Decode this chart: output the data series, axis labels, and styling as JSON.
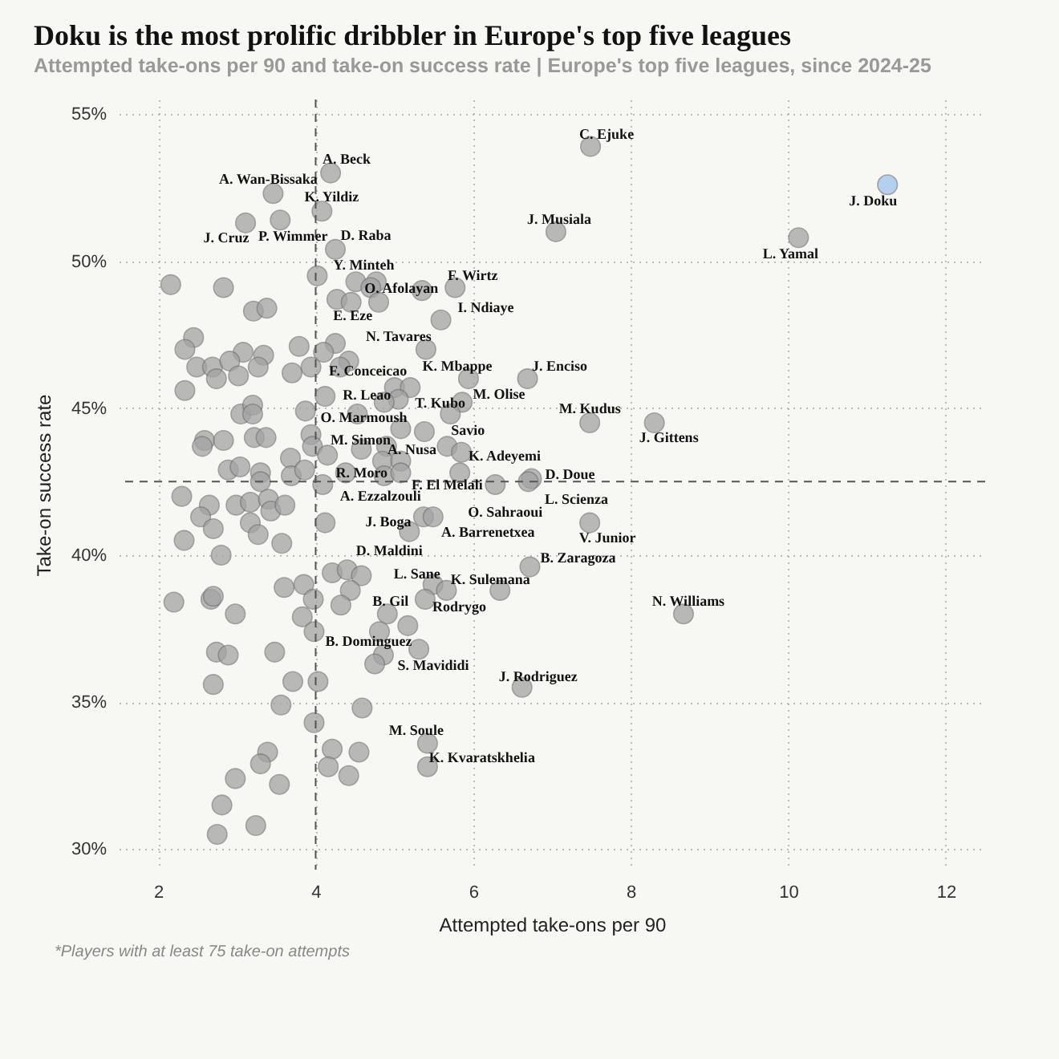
{
  "chart_data": {
    "type": "scatter",
    "title": "Doku is the most prolific dribbler in Europe's top five leagues",
    "subtitle": "Attempted take-ons per 90 and take-on success rate | Europe's top five leagues, since 2024-25",
    "xlabel": "Attempted take-ons per 90",
    "ylabel": "Take-on success rate",
    "xlim": [
      1.5,
      12.5
    ],
    "ylim": [
      29.3,
      55.5
    ],
    "xticks": [
      2,
      4,
      6,
      8,
      10,
      12
    ],
    "yticks": [
      {
        "value": 30,
        "label": "30%"
      },
      {
        "value": 35,
        "label": "35%"
      },
      {
        "value": 40,
        "label": "40%"
      },
      {
        "value": 45,
        "label": "45%"
      },
      {
        "value": 50,
        "label": "50%"
      },
      {
        "value": 55,
        "label": "55%"
      }
    ],
    "grid": true,
    "marker": "circle",
    "series": [
      {
        "color": "#a3a3a3",
        "x": [
          4.19,
          3.46,
          4.08,
          3.11,
          3.55,
          4.25,
          2.16,
          2.83,
          4.02,
          4.51,
          4.77,
          4.7,
          5.35,
          5.77,
          3.21,
          3.38,
          4.27,
          4.45,
          4.8,
          5.59,
          2.45,
          2.34,
          3.08,
          3.34,
          3.79,
          4.25,
          4.1,
          4.42,
          5.4,
          2.49,
          2.69,
          2.91,
          3.27,
          3.94,
          4.31,
          3.7,
          2.74,
          3.02,
          2.34,
          4.12,
          5.0,
          5.2,
          5.05,
          4.87,
          5.86,
          5.94,
          6.69,
          3.05,
          3.2,
          3.2,
          3.87,
          4.53,
          5.08,
          5.38,
          5.71,
          2.59,
          2.56,
          2.83,
          3.22,
          3.37,
          3.94,
          3.96,
          4.58,
          4.9,
          5.67,
          5.85,
          3.68,
          4.15,
          4.85,
          5.08,
          2.89,
          3.04,
          3.3,
          3.3,
          3.69,
          3.86,
          4.38,
          4.87,
          5.08,
          4.09,
          5.83,
          6.28,
          6.74,
          6.7,
          2.3,
          2.65,
          2.54,
          2.99,
          3.17,
          3.4,
          3.43,
          3.61,
          3.17,
          3.27,
          2.7,
          2.33,
          2.8,
          3.57,
          4.12,
          5.37,
          5.49,
          5.19,
          4.21,
          4.4,
          4.58,
          4.44,
          3.6,
          3.85,
          3.97,
          4.32,
          5.49,
          5.66,
          5.39,
          4.91,
          5.17,
          2.2,
          2.67,
          2.7,
          2.98,
          3.83,
          6.34,
          6.72,
          7.48,
          7.48,
          8.3,
          8.67,
          5.31,
          6.62,
          3.98,
          4.81,
          4.86,
          4.75,
          2.74,
          2.89,
          3.48,
          2.7,
          3.71,
          4.03,
          3.56,
          4.59,
          3.98,
          5.42,
          5.42,
          4.21,
          4.55,
          4.16,
          4.42,
          3.39,
          3.3,
          2.98,
          3.54,
          2.81,
          3.24,
          2.75,
          7.49,
          7.05,
          10.13
        ],
        "values": [
          53.0,
          52.3,
          51.7,
          51.3,
          51.4,
          50.4,
          49.2,
          49.1,
          49.5,
          49.3,
          49.3,
          49.1,
          49.0,
          49.1,
          48.3,
          48.4,
          48.7,
          48.6,
          48.6,
          48.0,
          47.4,
          47.0,
          46.9,
          46.8,
          47.1,
          47.2,
          46.9,
          46.6,
          47.0,
          46.4,
          46.4,
          46.6,
          46.4,
          46.4,
          46.4,
          46.2,
          46.0,
          46.1,
          45.6,
          45.4,
          45.7,
          45.7,
          45.3,
          45.2,
          45.2,
          46.0,
          46.0,
          44.8,
          45.1,
          44.8,
          44.9,
          44.8,
          44.3,
          44.2,
          44.8,
          43.9,
          43.7,
          43.9,
          44.0,
          44.0,
          44.1,
          43.7,
          43.6,
          43.7,
          43.7,
          43.5,
          43.3,
          43.4,
          43.2,
          43.2,
          42.9,
          43.0,
          42.8,
          42.5,
          42.7,
          42.9,
          42.8,
          42.7,
          42.8,
          42.4,
          42.8,
          42.4,
          42.6,
          42.5,
          42.0,
          41.7,
          41.3,
          41.7,
          41.8,
          41.9,
          41.5,
          41.7,
          41.1,
          40.7,
          40.9,
          40.5,
          40.0,
          40.4,
          41.1,
          41.3,
          41.3,
          40.8,
          39.4,
          39.5,
          39.3,
          38.8,
          38.9,
          39.0,
          38.5,
          38.3,
          39.0,
          38.8,
          38.5,
          38.0,
          37.6,
          38.4,
          38.5,
          38.6,
          38.0,
          37.9,
          38.8,
          39.6,
          41.1,
          44.5,
          44.5,
          38.0,
          36.8,
          35.5,
          37.4,
          37.4,
          36.6,
          36.3,
          36.7,
          36.6,
          36.7,
          35.6,
          35.7,
          35.7,
          34.9,
          34.8,
          34.3,
          33.6,
          32.8,
          33.4,
          33.3,
          32.8,
          32.5,
          33.3,
          32.9,
          32.4,
          32.2,
          31.5,
          30.8,
          30.5,
          53.9,
          51.0,
          50.8
        ]
      },
      {
        "color": "#9ec4ec",
        "x": [
          11.26
        ],
        "values": [
          52.6
        ]
      }
    ],
    "ref_lines": [
      {
        "axis": "x",
        "value": 4,
        "color": "#555555",
        "line_style": "dashed"
      },
      {
        "axis": "y",
        "value": 42.5,
        "color": "#555555",
        "line_style": "dashed"
      }
    ],
    "annotations": [
      {
        "text": "A. Beck",
        "x": 4.19,
        "y": 53.0
      },
      {
        "text": "A. Wan-Bissaka",
        "x": 3.46,
        "y": 52.3
      },
      {
        "text": "K. Yildiz",
        "x": 4.08,
        "y": 51.7
      },
      {
        "text": "J. Cruz",
        "x": 3.11,
        "y": 51.3
      },
      {
        "text": "P. Wimmer",
        "x": 3.55,
        "y": 51.4
      },
      {
        "text": "D. Raba",
        "x": 4.25,
        "y": 50.4
      },
      {
        "text": "Y. Minteh",
        "x": 4.02,
        "y": 49.5
      },
      {
        "text": "O. Afolayan",
        "x": 4.7,
        "y": 49.1
      },
      {
        "text": "F. Wirtz",
        "x": 5.77,
        "y": 49.1
      },
      {
        "text": "E. Eze",
        "x": 4.45,
        "y": 48.6
      },
      {
        "text": "I. Ndiaye",
        "x": 5.59,
        "y": 48.0
      },
      {
        "text": "N. Tavares",
        "x": 5.4,
        "y": 47.0
      },
      {
        "text": "F. Conceicao",
        "x": 4.42,
        "y": 46.6
      },
      {
        "text": "K. Mbappe",
        "x": 5.94,
        "y": 46.0
      },
      {
        "text": "J. Enciso",
        "x": 6.69,
        "y": 46.0
      },
      {
        "text": "R. Leao",
        "x": 4.12,
        "y": 45.4
      },
      {
        "text": "T. Kubo",
        "x": 5.05,
        "y": 45.3
      },
      {
        "text": "M. Olise",
        "x": 5.86,
        "y": 45.2
      },
      {
        "text": "O. Marmoush",
        "x": 4.53,
        "y": 44.8
      },
      {
        "text": "Savio",
        "x": 5.71,
        "y": 44.8
      },
      {
        "text": "M. Kudus",
        "x": 7.48,
        "y": 44.5
      },
      {
        "text": "J. Gittens",
        "x": 8.3,
        "y": 44.5
      },
      {
        "text": "M. Simon",
        "x": 3.96,
        "y": 43.7
      },
      {
        "text": "A. Nusa",
        "x": 5.67,
        "y": 43.7
      },
      {
        "text": "K. Adeyemi",
        "x": 5.85,
        "y": 43.5
      },
      {
        "text": "R. Moro",
        "x": 4.38,
        "y": 42.8
      },
      {
        "text": "D. Doue",
        "x": 6.74,
        "y": 42.6
      },
      {
        "text": "F. El Melali",
        "x": 6.28,
        "y": 42.4
      },
      {
        "text": "A. Ezzalzouli",
        "x": 4.09,
        "y": 42.4
      },
      {
        "text": "L. Scienza",
        "x": 6.7,
        "y": 42.5
      },
      {
        "text": "O. Sahraoui",
        "x": 5.49,
        "y": 41.3
      },
      {
        "text": "J. Boga",
        "x": 5.37,
        "y": 41.3
      },
      {
        "text": "A. Barrenetxea",
        "x": 5.19,
        "y": 40.8
      },
      {
        "text": "V. Junior",
        "x": 7.48,
        "y": 41.1
      },
      {
        "text": "D. Maldini",
        "x": 4.12,
        "y": 41.1
      },
      {
        "text": "B. Zaragoza",
        "x": 6.72,
        "y": 39.6
      },
      {
        "text": "L. Sane",
        "x": 5.49,
        "y": 39.0
      },
      {
        "text": "K. Sulemana",
        "x": 6.34,
        "y": 38.8
      },
      {
        "text": "Rodrygo",
        "x": 5.66,
        "y": 38.8
      },
      {
        "text": "N. Williams",
        "x": 8.67,
        "y": 38.0
      },
      {
        "text": "B. Gil",
        "x": 4.91,
        "y": 38.0
      },
      {
        "text": "B. Dominguez",
        "x": 3.98,
        "y": 37.4
      },
      {
        "text": "S. Mavididi",
        "x": 5.31,
        "y": 36.8
      },
      {
        "text": "J. Rodriguez",
        "x": 6.62,
        "y": 35.5
      },
      {
        "text": "M. Soule",
        "x": 5.42,
        "y": 33.6
      },
      {
        "text": "K. Kvaratskhelia",
        "x": 5.42,
        "y": 32.8
      },
      {
        "text": "C. Ejuke",
        "x": 7.49,
        "y": 53.9
      },
      {
        "text": "J. Musiala",
        "x": 7.05,
        "y": 51.0
      },
      {
        "text": "L. Yamal",
        "x": 10.13,
        "y": 50.8
      },
      {
        "text": "J. Doku",
        "x": 11.26,
        "y": 52.6
      },
      "*Players with at least 75 take-on attempts"
    ]
  }
}
